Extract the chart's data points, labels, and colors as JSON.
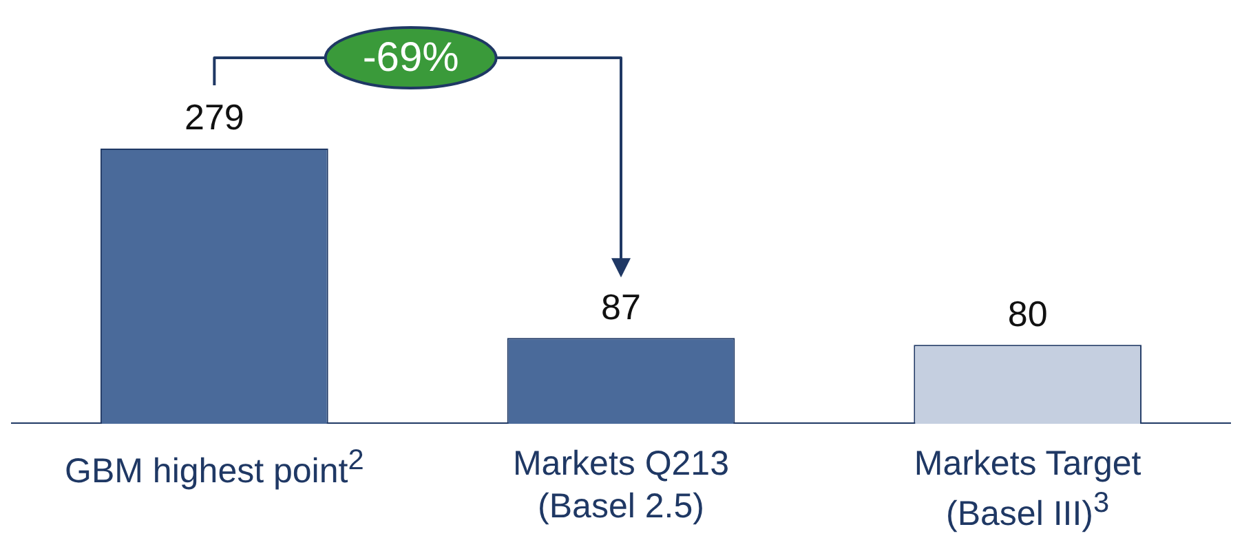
{
  "chart_data": {
    "type": "bar",
    "categories": [
      "GBM highest point$^{2}$",
      "Markets Q213\n(Basel 2.5)",
      "Markets Target\n(Basel III)$^{3}$"
    ],
    "values": [
      279,
      87,
      80
    ],
    "colors": [
      "#4a6a9a",
      "#4a6a9a",
      "#c5cfe0"
    ],
    "data_labels": true,
    "grid": false,
    "legend": false,
    "annotations": [
      "-69%"
    ]
  }
}
